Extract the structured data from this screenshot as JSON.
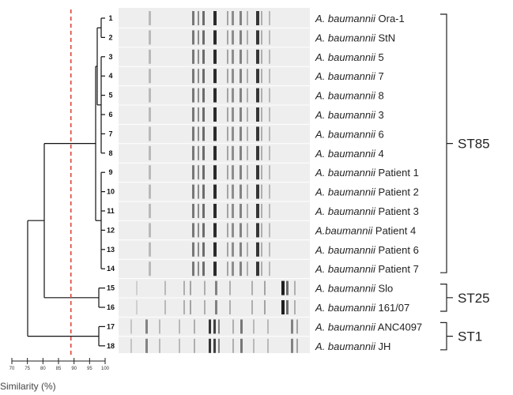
{
  "lanes": [
    {
      "num": "1",
      "species": "A. baumannii",
      "strain": "Ora-1"
    },
    {
      "num": "2",
      "species": "A. baumannii",
      "strain": "StN"
    },
    {
      "num": "3",
      "species": "A. baumannii",
      "strain": "5"
    },
    {
      "num": "4",
      "species": "A. baumannii",
      "strain": "7"
    },
    {
      "num": "5",
      "species": "A. baumannii",
      "strain": "8"
    },
    {
      "num": "6",
      "species": "A. baumannii",
      "strain": "3"
    },
    {
      "num": "7",
      "species": "A. baumannii",
      "strain": "6"
    },
    {
      "num": "8",
      "species": "A. baumannii",
      "strain": "4"
    },
    {
      "num": "9",
      "species": "A. baumannii",
      "strain": "Patient 1"
    },
    {
      "num": "10",
      "species": "A. baumannii",
      "strain": "Patient 2"
    },
    {
      "num": "11",
      "species": "A. baumannii",
      "strain": "Patient 3"
    },
    {
      "num": "12",
      "species": "A.baumannii",
      "strain": "Patient 4"
    },
    {
      "num": "13",
      "species": "A. baumannii",
      "strain": "Patient 6"
    },
    {
      "num": "14",
      "species": "A. baumannii",
      "strain": "Patient 7"
    },
    {
      "num": "15",
      "species": "A. baumannii",
      "strain": "Slo"
    },
    {
      "num": "16",
      "species": "A. baumannii",
      "strain": "161/07"
    },
    {
      "num": "17",
      "species": "A. baumannii",
      "strain": "ANC4097"
    },
    {
      "num": "18",
      "species": "A. baumannii",
      "strain": "JH"
    }
  ],
  "groups": [
    {
      "name": "ST85",
      "from": 1,
      "to": 14
    },
    {
      "name": "ST25",
      "from": 15,
      "to": 16
    },
    {
      "name": "ST1",
      "from": 17,
      "to": 18
    }
  ],
  "axis": {
    "title": "Similarity (%)",
    "ticks": [
      "70",
      "75",
      "80",
      "85",
      "90",
      "95",
      "100"
    ],
    "min": 70,
    "max": 100,
    "cutoff": 89
  },
  "colors": {
    "cutoff_line": "#e03b2f",
    "tree": "#111111",
    "gel_bg": "#eeeeee"
  }
}
